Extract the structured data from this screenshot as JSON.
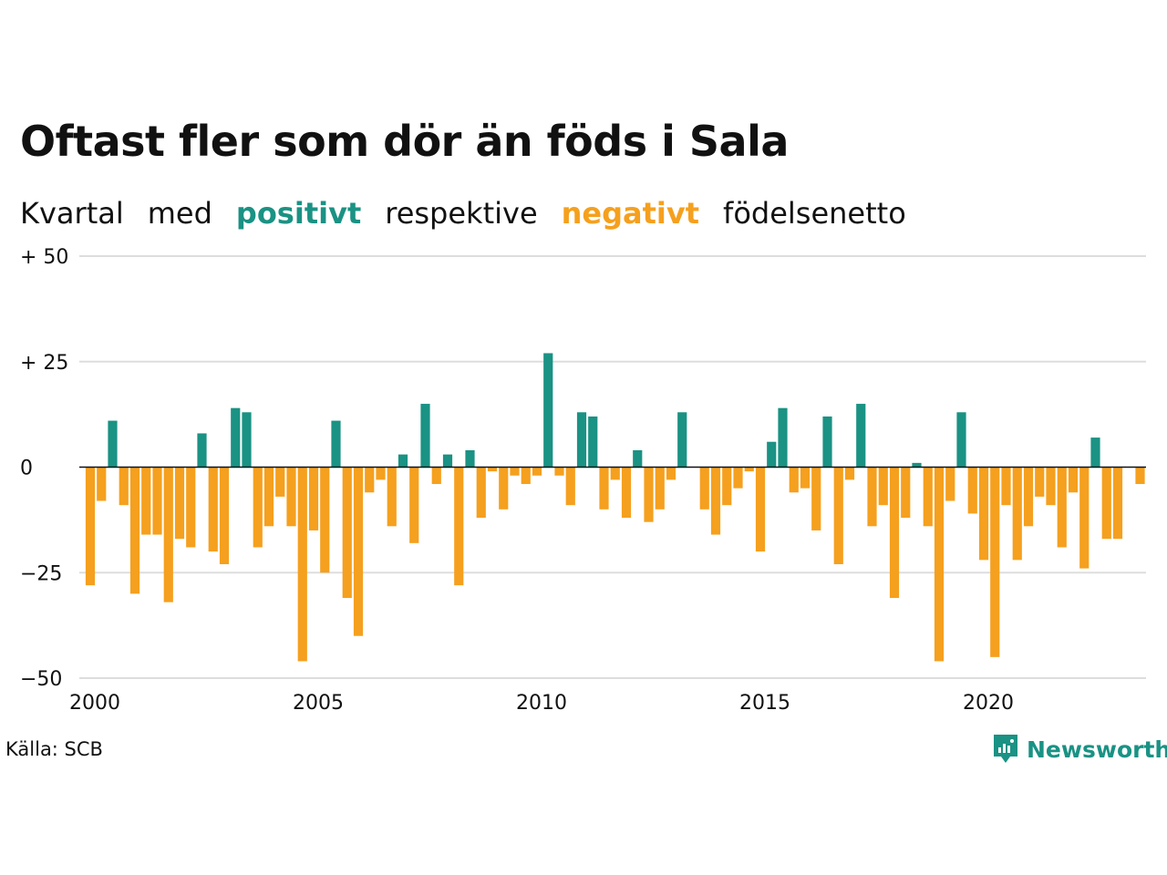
{
  "title": "Oftast fler som dör än föds i Sala",
  "subtitle": {
    "w1": "Kvartal",
    "w2": "med",
    "positive": "positivt",
    "w3": "respektive",
    "negative": "negativt",
    "w4": "födelsenetto"
  },
  "source": "Källa: SCB",
  "logo": {
    "text": "Newsworthy",
    "icon": "newsworthy-chart-bubble-icon"
  },
  "colors": {
    "positive": "#1a9284",
    "negative": "#f5a01e",
    "grid": "#dddddd",
    "text": "#111111"
  },
  "chart_data": {
    "type": "bar",
    "x_start": 2000,
    "x_step": 0.25,
    "x_ticks": [
      2000,
      2005,
      2010,
      2015,
      2020
    ],
    "x_tick_labels": [
      "2000",
      "2005",
      "2010",
      "2015",
      "2020"
    ],
    "y_ticks": [
      50,
      25,
      0,
      -25,
      -50
    ],
    "y_tick_labels": [
      "+ 50",
      "+ 25",
      "0",
      "−25",
      "−50"
    ],
    "ylim": [
      -50,
      50
    ],
    "xlim": [
      2000,
      2024
    ],
    "grid": true,
    "values": [
      -28,
      -8,
      11,
      -9,
      -30,
      -16,
      -16,
      -32,
      -17,
      -19,
      8,
      -20,
      -23,
      14,
      13,
      -19,
      -14,
      -7,
      -14,
      -46,
      -15,
      -25,
      11,
      -31,
      -40,
      -6,
      -3,
      -14,
      3,
      -18,
      15,
      -4,
      3,
      -28,
      4,
      -12,
      -1,
      -10,
      -2,
      -4,
      -2,
      27,
      -2,
      -9,
      13,
      12,
      -10,
      -3,
      -12,
      4,
      -13,
      -10,
      -3,
      13,
      0,
      -10,
      -16,
      -9,
      -5,
      -1,
      -20,
      6,
      14,
      -6,
      -5,
      -15,
      12,
      -23,
      -3,
      15,
      -14,
      -9,
      -31,
      -12,
      1,
      -14,
      -46,
      -8,
      13,
      -11,
      -22,
      -45,
      -9,
      -22,
      -14,
      -7,
      -9,
      -19,
      -6,
      -24,
      7,
      -17,
      -17,
      0,
      -4
    ]
  }
}
